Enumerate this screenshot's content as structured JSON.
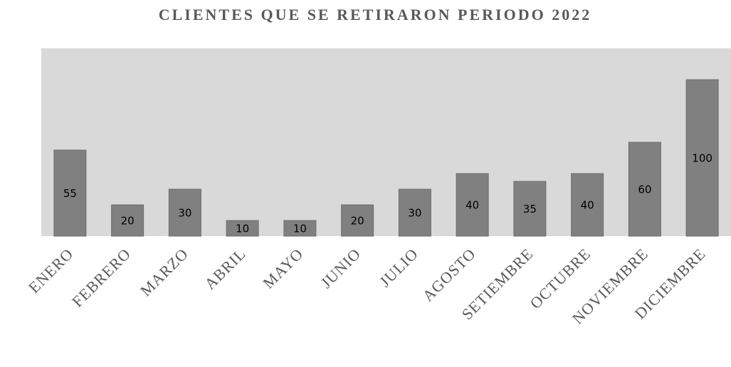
{
  "chart_data": {
    "type": "bar",
    "title": "CLIENTES QUE SE RETIRARON PERIODO 2022",
    "categories": [
      "ENERO",
      "FEBRERO",
      "MARZO",
      "ABRIL",
      "MAYO",
      "JUNIO",
      "JULIO",
      "AGOSTO",
      "SETIEMBRE",
      "OCTUBRE",
      "NOVIEMBRE",
      "DICIEMBRE"
    ],
    "values": [
      55,
      20,
      30,
      10,
      10,
      20,
      30,
      40,
      35,
      40,
      60,
      100
    ],
    "color": "#808080"
  }
}
